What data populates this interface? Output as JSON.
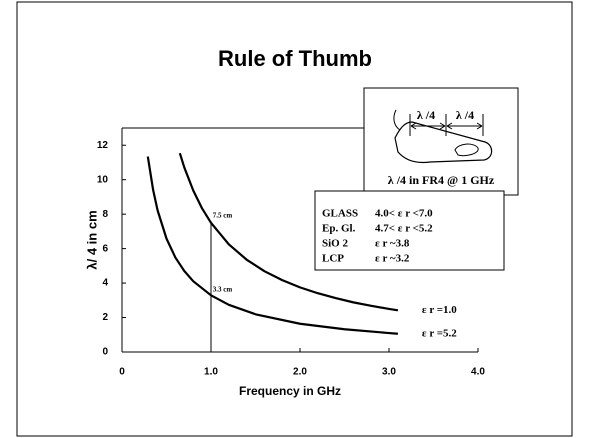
{
  "chart_data": {
    "type": "line",
    "title": "Rule of Thumb",
    "x_label": "Frequency in GHz",
    "y_label": "λ/ 4 in cm",
    "xlim": [
      0,
      4
    ],
    "ylim": [
      0,
      13
    ],
    "xticks": [
      0,
      {
        "value": 1,
        "label": "1.0"
      },
      {
        "value": 2,
        "label": "2.0"
      },
      {
        "value": 3,
        "label": "3.0"
      },
      {
        "value": 4,
        "label": "4.0"
      }
    ],
    "yticks": [
      0,
      2,
      4,
      6,
      8,
      10,
      12
    ],
    "series": [
      {
        "name": "ε r =1.0",
        "color": "#000000",
        "x": [
          0.65,
          0.7,
          0.8,
          0.9,
          1.0,
          1.2,
          1.4,
          1.6,
          1.8,
          2.0,
          2.2,
          2.4,
          2.6,
          2.8,
          3.0,
          3.1
        ],
        "values": [
          11.54,
          10.71,
          9.38,
          8.33,
          7.5,
          6.25,
          5.36,
          4.69,
          4.17,
          3.75,
          3.41,
          3.13,
          2.88,
          2.68,
          2.5,
          2.42
        ]
      },
      {
        "name": "ε r =5.2",
        "color": "#000000",
        "x": [
          0.29,
          0.35,
          0.4,
          0.5,
          0.6,
          0.7,
          0.8,
          1.0,
          1.2,
          1.5,
          2.0,
          2.5,
          3.0,
          3.1
        ],
        "values": [
          11.34,
          9.4,
          8.22,
          6.58,
          5.48,
          4.7,
          4.11,
          3.29,
          2.74,
          2.19,
          1.64,
          1.32,
          1.1,
          1.06
        ]
      }
    ],
    "marker_line": {
      "x": 1.0,
      "y": 7.5
    },
    "annotations": [
      {
        "text": "7.5 cm",
        "x": 1.02,
        "y": 7.9
      },
      {
        "text": "3.3 cm",
        "x": 1.02,
        "y": 3.6
      }
    ],
    "inset": {
      "labels": [
        "λ /4",
        "λ /4"
      ],
      "caption": "λ /4 in FR4 @ 1 GHz"
    },
    "table": [
      [
        "GLASS",
        "4.0< ε r <7.0"
      ],
      [
        "Ep. Gl.",
        "4.7< ε r <5.2"
      ],
      [
        "SiO 2",
        "ε r ~3.8"
      ],
      [
        "LCP",
        "ε r ~3.2"
      ]
    ]
  }
}
